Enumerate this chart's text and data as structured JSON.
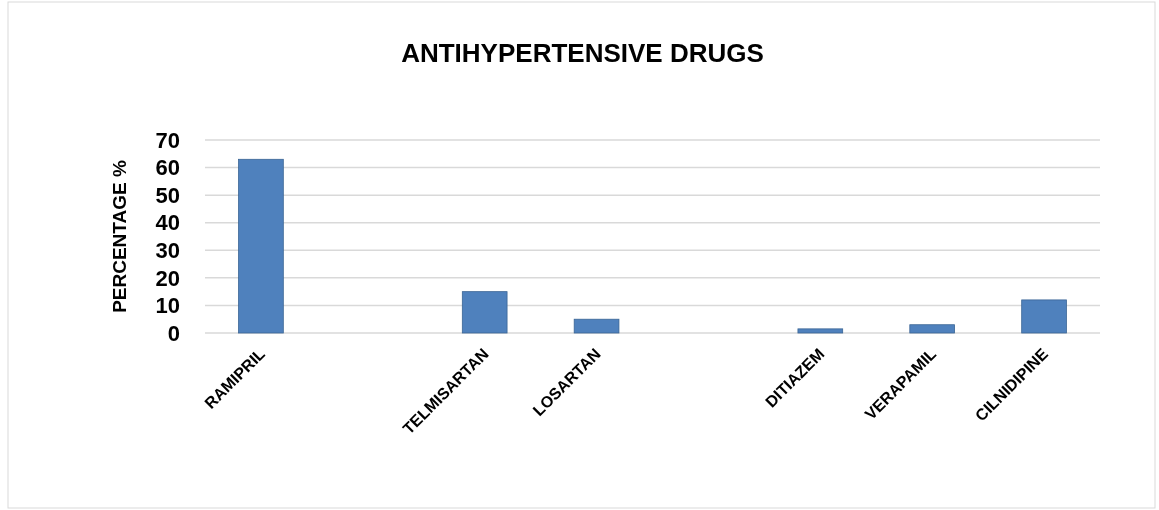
{
  "chart_data": {
    "type": "bar",
    "title": "ANTIHYPERTENSIVE DRUGS",
    "ylabel": "PERCENTAGE %",
    "categories": [
      "RAMIPRIL",
      null,
      "TELMISARTAN",
      "LOSARTAN",
      null,
      "DITIAZEM",
      "VERAPAMIL",
      "CILNIDIPINE"
    ],
    "values": [
      63,
      null,
      15,
      5,
      null,
      1.5,
      3,
      12
    ],
    "color": "#4f81bd",
    "ylim": [
      0,
      70
    ],
    "yticks": [
      0,
      10,
      20,
      30,
      40,
      50,
      60,
      70
    ],
    "grid": "y"
  }
}
